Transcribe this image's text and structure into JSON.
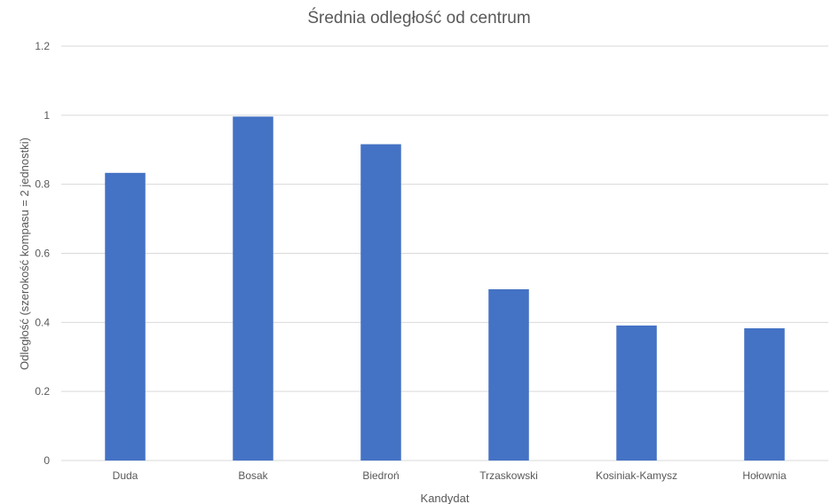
{
  "chart_data": {
    "type": "bar",
    "title": "Średnia odległość od centrum",
    "xlabel": "Kandydat",
    "ylabel": "Odległość (szerokość kompasu = 2 jednostki)",
    "categories": [
      "Duda",
      "Bosak",
      "Biedroń",
      "Trzaskowski",
      "Kosiniak-Kamysz",
      "Hołownia"
    ],
    "values": [
      0.833,
      0.996,
      0.916,
      0.496,
      0.391,
      0.383
    ],
    "ylim": [
      0,
      1.2
    ],
    "yticks": [
      "0",
      "0.2",
      "0.4",
      "0.6",
      "0.8",
      "1",
      "1.2"
    ],
    "grid": true,
    "legend": "none",
    "colors": {
      "bar": "#4472c4"
    }
  }
}
